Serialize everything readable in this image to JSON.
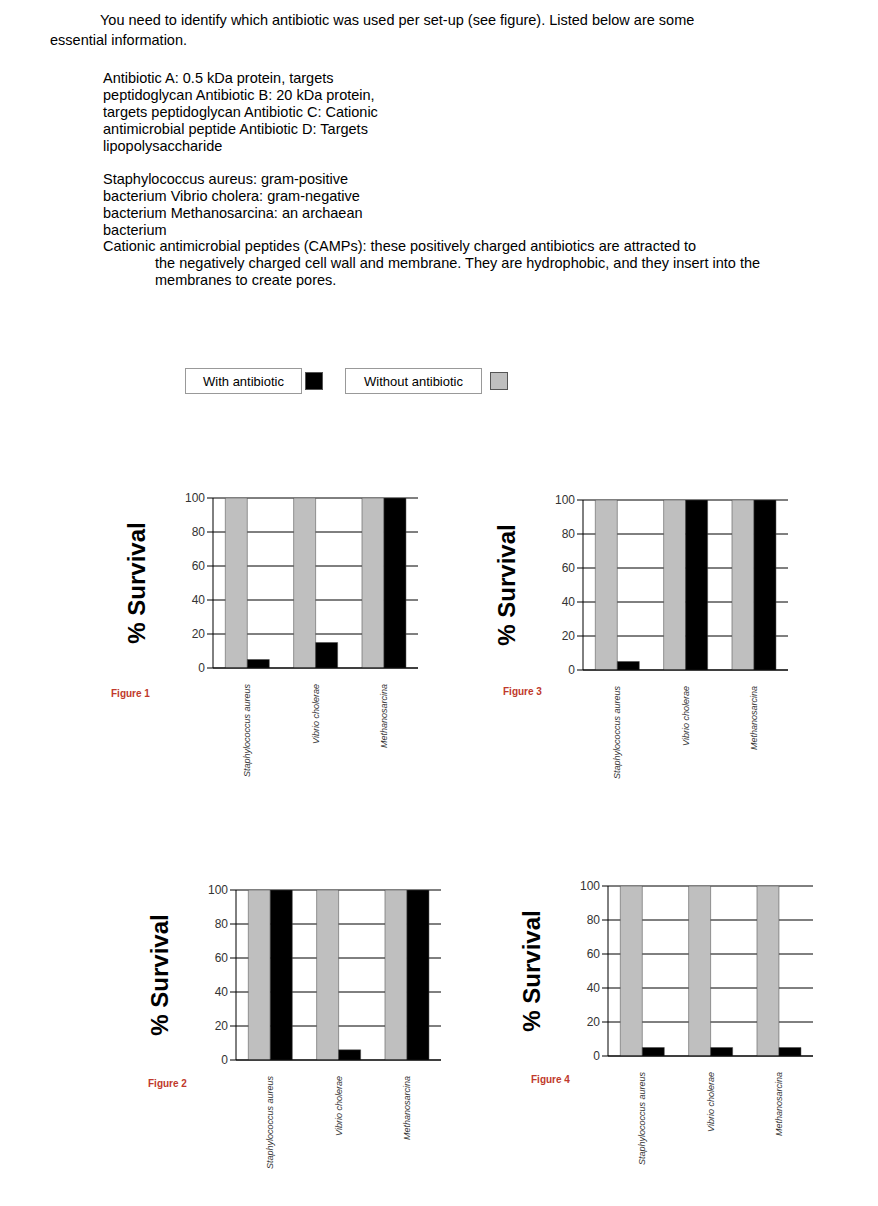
{
  "intro": [
    "You need to identify which antibiotic was used per set-up (see figure). Listed below are some",
    "essential information."
  ],
  "antibiotics": [
    "Antibiotic A: 0.5 kDa protein, targets",
    "peptidoglycan Antibiotic B: 20 kDa protein,",
    "targets peptidoglycan Antibiotic C: Cationic",
    "antimicrobial peptide Antibiotic D: Targets",
    "lipopolysaccharide"
  ],
  "organisms": [
    "Staphylococcus aureus: gram-positive",
    "bacterium Vibrio cholera: gram-negative",
    "bacterium Methanosarcina: an archaean",
    "bacterium"
  ],
  "camps": [
    "Cationic antimicrobial peptides (CAMPs): these positively charged antibiotics are attracted to",
    "the negatively charged cell wall and membrane. They are hydrophobic, and they insert into the",
    "membranes to create pores."
  ],
  "chart_data": [
    {
      "type": "bar",
      "title": "Figure 1",
      "y_label": "% Survival",
      "categories": [
        "Staphylococcus aureus",
        "Vibrio cholerae",
        "Methanosarcina"
      ],
      "series": [
        {
          "name": "Without antibiotic",
          "color": "#bfbfbf",
          "values": [
            100,
            100,
            100
          ]
        },
        {
          "name": "With antibiotic",
          "color": "#000000",
          "values": [
            5,
            15,
            100
          ]
        }
      ],
      "ylim": [
        0,
        100
      ],
      "yticks": [
        0,
        20,
        40,
        60,
        80,
        100
      ],
      "grid": true
    },
    {
      "type": "bar",
      "title": "Figure 2",
      "y_label": "% Survival",
      "categories": [
        "Staphylococcus aureus",
        "Vibrio cholerae",
        "Methanosarcina"
      ],
      "series": [
        {
          "name": "Without antibiotic",
          "color": "#bfbfbf",
          "values": [
            100,
            100,
            100
          ]
        },
        {
          "name": "With antibiotic",
          "color": "#000000",
          "values": [
            100,
            6,
            100
          ]
        }
      ],
      "ylim": [
        0,
        100
      ],
      "yticks": [
        0,
        20,
        40,
        60,
        80,
        100
      ],
      "grid": true
    },
    {
      "type": "bar",
      "title": "Figure 3",
      "y_label": "% Survival",
      "categories": [
        "Staphylococcus aureus",
        "Vibrio cholerae",
        "Methanosarcina"
      ],
      "series": [
        {
          "name": "Without antibiotic",
          "color": "#bfbfbf",
          "values": [
            100,
            100,
            100
          ]
        },
        {
          "name": "With antibiotic",
          "color": "#000000",
          "values": [
            5,
            100,
            100
          ]
        }
      ],
      "ylim": [
        0,
        100
      ],
      "yticks": [
        0,
        20,
        40,
        60,
        80,
        100
      ],
      "grid": true
    },
    {
      "type": "bar",
      "title": "Figure 4",
      "y_label": "% Survival",
      "categories": [
        "Staphylococcus aureus",
        "Vibrio cholerae",
        "Methanosarcina"
      ],
      "series": [
        {
          "name": "Without antibiotic",
          "color": "#bfbfbf",
          "values": [
            100,
            100,
            100
          ]
        },
        {
          "name": "With antibiotic",
          "color": "#000000",
          "values": [
            5,
            5,
            5
          ]
        }
      ],
      "ylim": [
        0,
        100
      ],
      "yticks": [
        0,
        20,
        40,
        60,
        80,
        100
      ],
      "grid": true
    }
  ]
}
